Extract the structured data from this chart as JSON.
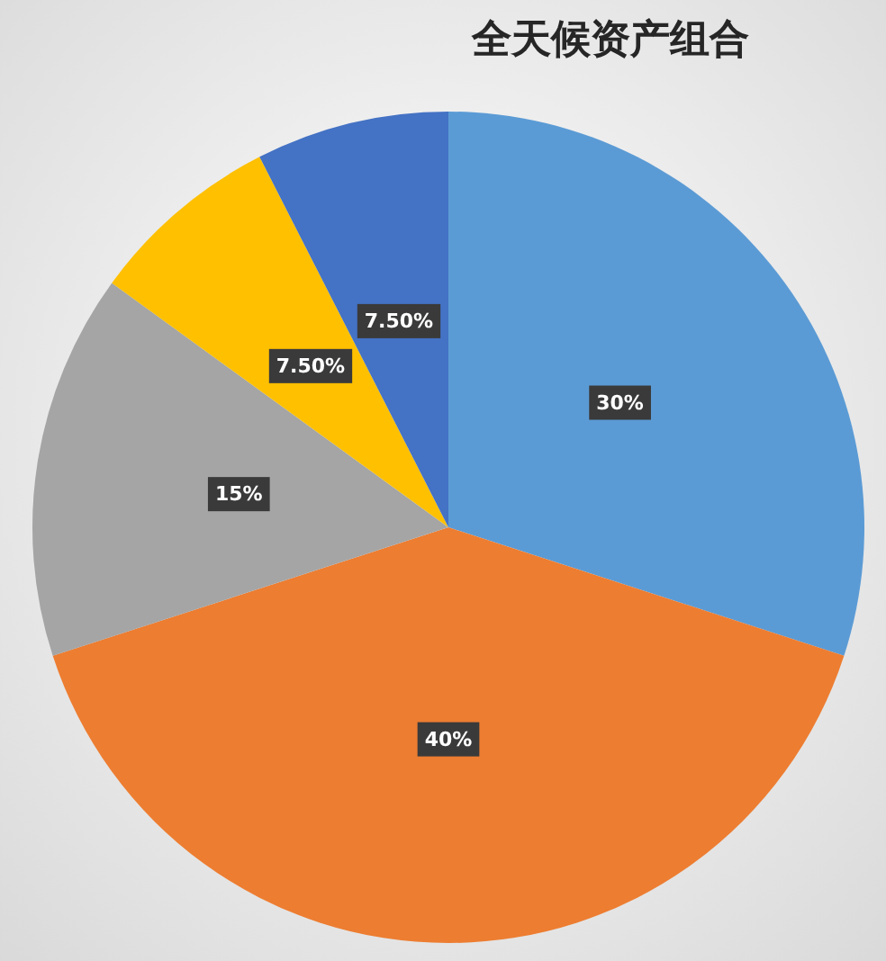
{
  "chart_data": {
    "type": "pie",
    "title": "全天候资产组合",
    "categories": [
      null,
      null,
      null,
      null,
      null
    ],
    "values": [
      30,
      40,
      15,
      7.5,
      7.5
    ],
    "colors": [
      "#5b9bd5",
      "#ed7d31",
      "#a5a5a5",
      "#ffc000",
      "#4472c4"
    ],
    "value_labels": [
      "30%",
      "40%",
      "15%",
      "7.50%",
      "7.50%"
    ]
  }
}
